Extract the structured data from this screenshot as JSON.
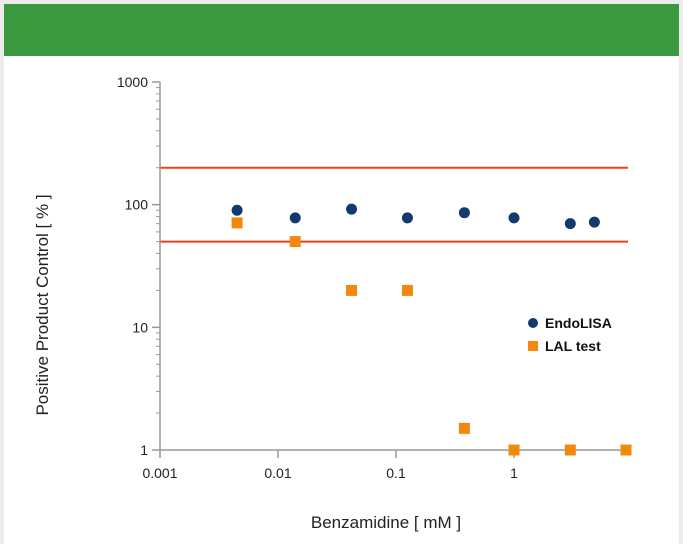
{
  "colors": {
    "header": "#3b9a3f",
    "frame": "#ececec",
    "endolisa": "#123a6e",
    "lal": "#f5870f",
    "limit_line": "#ef3e1c",
    "axis": "#999999"
  },
  "chart_data": {
    "type": "scatter",
    "title": "",
    "xlabel": "Benzamidine  [ mM ]",
    "ylabel": "Positive Product Control  [ % ]",
    "x_scale": "log",
    "y_scale": "log",
    "xlim": [
      0.001,
      8
    ],
    "ylim": [
      1,
      1000
    ],
    "x_ticks": [
      {
        "value": 0.001,
        "label": "0.001"
      },
      {
        "value": 0.01,
        "label": "0.01"
      },
      {
        "value": 0.1,
        "label": "0.1"
      },
      {
        "value": 1,
        "label": "1"
      }
    ],
    "y_ticks": [
      {
        "value": 1,
        "label": "1"
      },
      {
        "value": 10,
        "label": "10"
      },
      {
        "value": 100,
        "label": "100"
      },
      {
        "value": 1000,
        "label": "1000"
      }
    ],
    "grid": false,
    "legend": "right",
    "reference_lines": [
      {
        "axis": "y",
        "value": 200
      },
      {
        "axis": "y",
        "value": 50
      }
    ],
    "series": [
      {
        "name": "EndoLISA",
        "marker": "circle",
        "points": [
          {
            "x": 0.0045,
            "y": 90
          },
          {
            "x": 0.014,
            "y": 78
          },
          {
            "x": 0.042,
            "y": 92
          },
          {
            "x": 0.125,
            "y": 78
          },
          {
            "x": 0.38,
            "y": 86
          },
          {
            "x": 1.0,
            "y": 78
          },
          {
            "x": 3.0,
            "y": 70
          },
          {
            "x": 4.8,
            "y": 72
          }
        ]
      },
      {
        "name": "LAL test",
        "marker": "square",
        "points": [
          {
            "x": 0.0045,
            "y": 71
          },
          {
            "x": 0.014,
            "y": 50
          },
          {
            "x": 0.042,
            "y": 20
          },
          {
            "x": 0.125,
            "y": 20
          },
          {
            "x": 0.38,
            "y": 1.5
          },
          {
            "x": 1.0,
            "y": 1
          },
          {
            "x": 3.0,
            "y": 1
          },
          {
            "x": 9.0,
            "y": 1
          }
        ]
      }
    ]
  }
}
